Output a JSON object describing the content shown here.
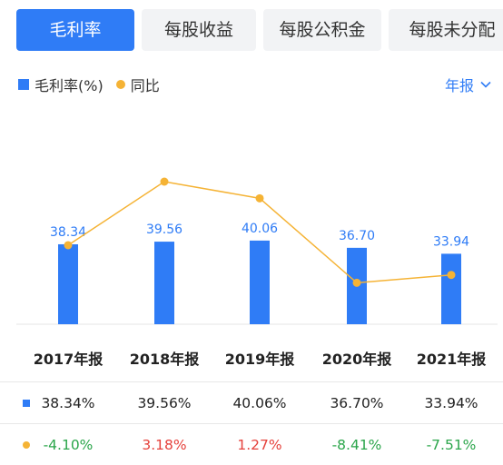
{
  "tabs": [
    {
      "label": "毛利率",
      "active": true
    },
    {
      "label": "每股收益",
      "active": false
    },
    {
      "label": "每股公积金",
      "active": false
    },
    {
      "label": "每股未分配",
      "active": false
    }
  ],
  "legend": {
    "bar_label": "毛利率(%)",
    "line_label": "同比"
  },
  "period_selector": {
    "label": "年报",
    "icon": "chevron-down-icon"
  },
  "colors": {
    "accent": "#2f7cf6",
    "line": "#f5b335",
    "positive": "#e5413b",
    "negative": "#2aa54a"
  },
  "chart_data": {
    "type": "bar",
    "categories": [
      "2017年报",
      "2018年报",
      "2019年报",
      "2020年报",
      "2021年报"
    ],
    "series": [
      {
        "name": "毛利率(%)",
        "type": "bar",
        "values": [
          38.34,
          39.56,
          40.06,
          36.7,
          33.94
        ],
        "labels": [
          "38.34",
          "39.56",
          "40.06",
          "36.70",
          "33.94"
        ]
      },
      {
        "name": "同比",
        "type": "line",
        "values": [
          -4.1,
          3.18,
          1.27,
          -8.41,
          -7.51
        ]
      }
    ],
    "grid": false,
    "legend_position": "top-left"
  },
  "table": {
    "headers": [
      "2017年报",
      "2018年报",
      "2019年报",
      "2020年报",
      "2021年报"
    ],
    "margin_row": [
      "38.34%",
      "39.56%",
      "40.06%",
      "36.70%",
      "33.94%"
    ],
    "yoy_row": [
      "-4.10%",
      "3.18%",
      "1.27%",
      "-8.41%",
      "-7.51%"
    ]
  }
}
